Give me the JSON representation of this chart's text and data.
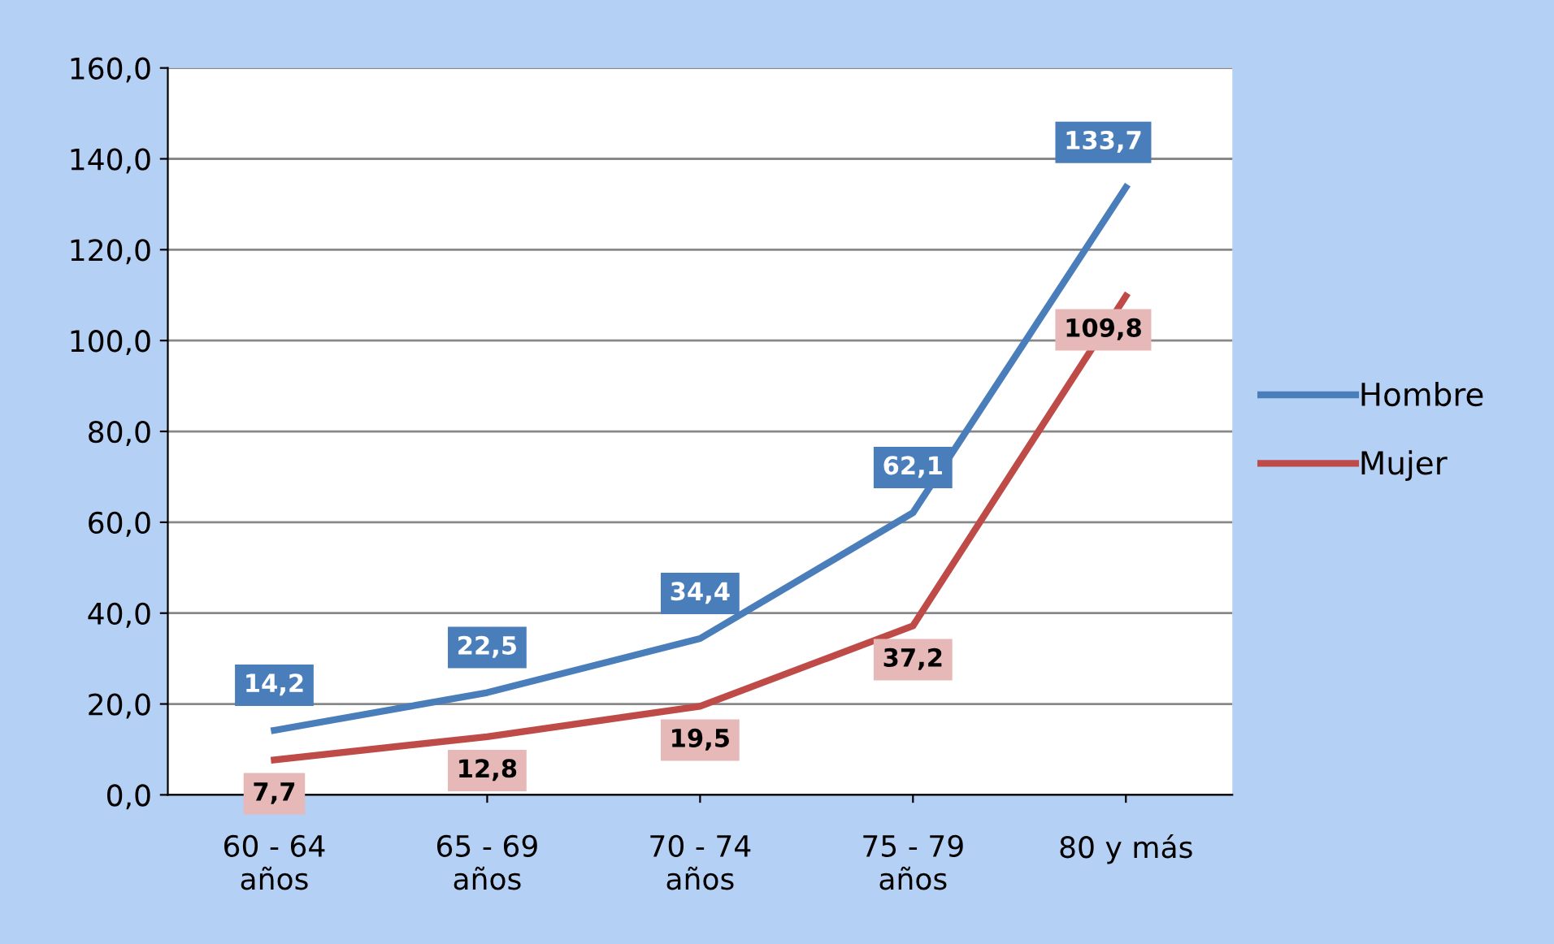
{
  "chart_data": {
    "type": "line",
    "categories": [
      "60 - 64\naños",
      "65 - 69\naños",
      "70 - 74\naños",
      "75 - 79\naños",
      "80 y más"
    ],
    "series": [
      {
        "name": "Hombre",
        "color": "#4a7ebb",
        "values": [
          14.2,
          22.5,
          34.4,
          62.1,
          133.7
        ],
        "value_labels": [
          "14,2",
          "22,5",
          "34,4",
          "62,1",
          "133,7"
        ]
      },
      {
        "name": "Mujer",
        "color": "#be4b48",
        "values": [
          7.7,
          12.8,
          19.5,
          37.2,
          109.8
        ],
        "value_labels": [
          "7,7",
          "12,8",
          "19,5",
          "37,2",
          "109,8"
        ]
      }
    ],
    "ylim": [
      0,
      160
    ],
    "yticks": [
      {
        "value": 0,
        "label": "0,0"
      },
      {
        "value": 20,
        "label": "20,0"
      },
      {
        "value": 40,
        "label": "40,0"
      },
      {
        "value": 60,
        "label": "60,0"
      },
      {
        "value": 80,
        "label": "80,0"
      },
      {
        "value": 100,
        "label": "100,0"
      },
      {
        "value": 120,
        "label": "120,0"
      },
      {
        "value": 140,
        "label": "140,0"
      },
      {
        "value": 160,
        "label": "160,0"
      }
    ],
    "grid": "y",
    "legend": "right",
    "marker": "none",
    "line_style": "solid"
  }
}
